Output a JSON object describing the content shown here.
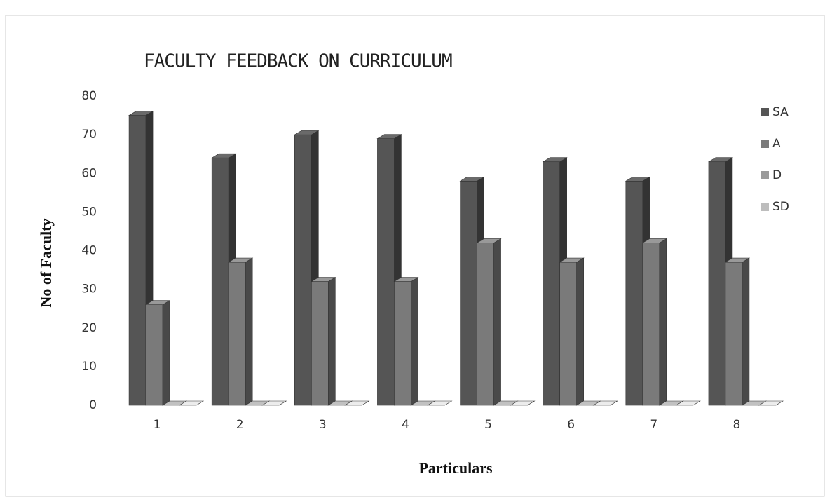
{
  "chart_data": {
    "type": "bar3d",
    "title": "FACULTY FEEDBACK ON CURRICULUM",
    "xlabel": "Particulars",
    "ylabel": "No of Faculty",
    "categories": [
      "1",
      "2",
      "3",
      "4",
      "5",
      "6",
      "7",
      "8"
    ],
    "series": [
      {
        "name": "SA",
        "color": "#555555",
        "values": [
          75,
          64,
          70,
          69,
          58,
          63,
          58,
          63
        ]
      },
      {
        "name": "A",
        "color": "#7a7a7a",
        "values": [
          26,
          37,
          32,
          32,
          42,
          37,
          42,
          37
        ]
      },
      {
        "name": "D",
        "color": "#9a9a9a",
        "values": [
          0,
          0,
          0,
          0,
          0,
          0,
          0,
          0
        ]
      },
      {
        "name": "SD",
        "color": "#bdbdbd",
        "values": [
          0,
          0,
          0,
          0,
          0,
          0,
          0,
          0
        ]
      }
    ],
    "ylim": [
      0,
      80
    ],
    "yticks": [
      0,
      10,
      20,
      30,
      40,
      50,
      60,
      70,
      80
    ],
    "legend": "right"
  }
}
